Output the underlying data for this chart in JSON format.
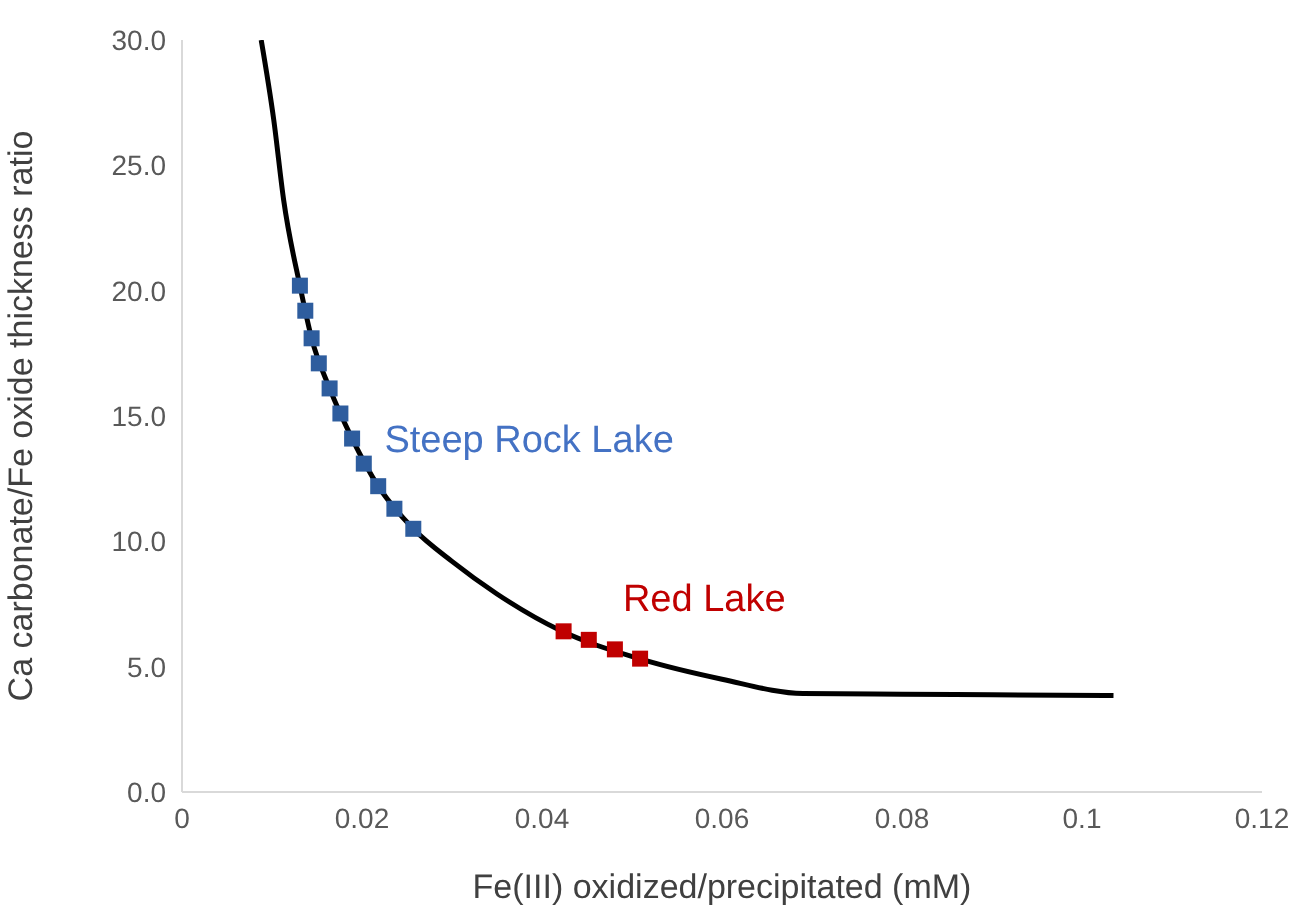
{
  "chart_data": {
    "type": "line",
    "xlabel": "Fe(III) oxidized/precipitated (mM)",
    "ylabel": "Ca carbonate/Fe oxide thickness ratio",
    "xlim": [
      0,
      0.12
    ],
    "xticks": [
      0,
      0.02,
      0.04,
      0.06,
      0.08,
      0.1,
      0.12
    ],
    "ylim": [
      0,
      30
    ],
    "yticks": [
      {
        "value": 0,
        "label": "0.0"
      },
      {
        "value": 5,
        "label": "5.0"
      },
      {
        "value": 10,
        "label": "10.0"
      },
      {
        "value": 15,
        "label": "15.0"
      },
      {
        "value": 20,
        "label": "20.0"
      },
      {
        "value": 25,
        "label": "25.0"
      },
      {
        "value": 30,
        "label": "30.0"
      }
    ],
    "series": [
      {
        "color": "#000000",
        "marker": "none",
        "x": [
          0.0088,
          0.0102,
          0.0113,
          0.0131,
          0.0144,
          0.0164,
          0.0189,
          0.0218,
          0.0257,
          0.03,
          0.035,
          0.042,
          0.051,
          0.06,
          0.069,
          0.08,
          0.09,
          0.1035
        ],
        "values": [
          30,
          26.8,
          23.6,
          20.2,
          18.1,
          16.1,
          14.1,
          12.2,
          10.5,
          9.2,
          7.9,
          6.45,
          5.3,
          4.5,
          3.93,
          3.9,
          3.88,
          3.85
        ]
      },
      {
        "type": "scatter",
        "name": "Steep Rock Lake",
        "color": "#2e5d9e",
        "marker": "square",
        "x": [
          0.0131,
          0.0137,
          0.0144,
          0.0152,
          0.0164,
          0.0176,
          0.0189,
          0.0202,
          0.0218,
          0.0236,
          0.0257
        ],
        "values": [
          20.2,
          19.2,
          18.1,
          17.1,
          16.1,
          15.1,
          14.1,
          13.1,
          12.2,
          11.3,
          10.5
        ]
      },
      {
        "type": "scatter",
        "name": "Red Lake",
        "color": "#c00000",
        "marker": "square",
        "x": [
          0.0424,
          0.0452,
          0.0481,
          0.0509
        ],
        "values": [
          6.41,
          6.07,
          5.69,
          5.32
        ]
      }
    ]
  }
}
